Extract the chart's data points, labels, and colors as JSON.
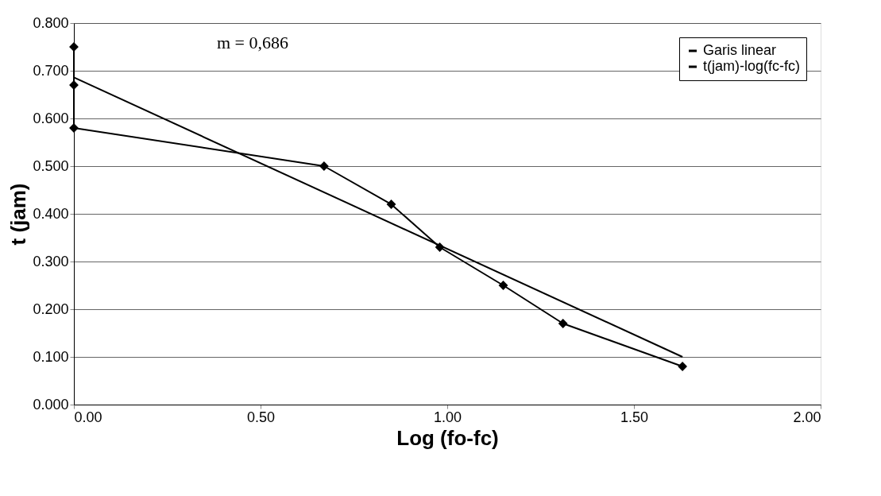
{
  "chart_data": {
    "type": "line",
    "xlabel": "Log (fo-fc)",
    "ylabel": "t (jam)",
    "annotations": [
      "m = 0,686"
    ],
    "series": [
      {
        "name": "Garis linear",
        "color": "#000000",
        "marker": "diamond",
        "x": [
          0,
          0,
          0,
          0.67,
          0.85,
          0.98,
          1.15,
          1.31,
          1.63
        ],
        "values": [
          0.75,
          0.67,
          0.58,
          0.5,
          0.42,
          0.33,
          0.25,
          0.17,
          0.08
        ]
      },
      {
        "name": "t(jam)-log(fc-fc)",
        "color": "#000000",
        "marker": "none",
        "x": [
          0,
          1.63
        ],
        "values": [
          0.686,
          0.1
        ]
      }
    ],
    "xlim": [
      0,
      2
    ],
    "ylim": [
      0,
      0.8
    ],
    "xticks": [
      {
        "value": 0,
        "label": "0.00"
      },
      {
        "value": 0.5,
        "label": "0.50"
      },
      {
        "value": 1,
        "label": "1.00"
      },
      {
        "value": 1.5,
        "label": "1.50"
      },
      {
        "value": 2,
        "label": "2.00"
      }
    ],
    "yticks": [
      {
        "value": 0,
        "label": "0.000"
      },
      {
        "value": 0.1,
        "label": "0.100"
      },
      {
        "value": 0.2,
        "label": "0.200"
      },
      {
        "value": 0.3,
        "label": "0.300"
      },
      {
        "value": 0.4,
        "label": "0.400"
      },
      {
        "value": 0.5,
        "label": "0.500"
      },
      {
        "value": 0.6,
        "label": "0.600"
      },
      {
        "value": 0.7,
        "label": "0.700"
      },
      {
        "value": 0.8,
        "label": "0.800"
      }
    ],
    "grid": "y",
    "legend": "top right"
  }
}
